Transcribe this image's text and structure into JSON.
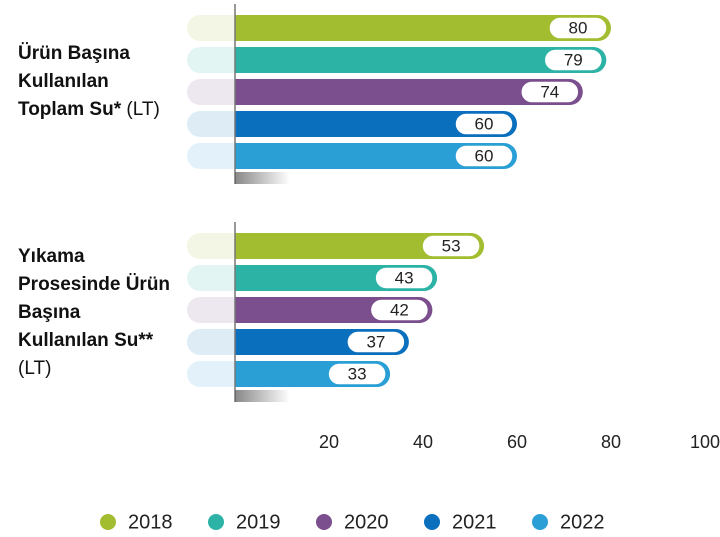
{
  "chart_data": {
    "type": "bar",
    "orientation": "horizontal",
    "categories": [
      "Ürün Başına Kullanılan Toplam Su*",
      "Yıkama Prosesinde Ürün Başına Kullanılan Su**"
    ],
    "unit": "(LT)",
    "series": [
      {
        "name": "2018",
        "color": "#a3bd31",
        "values": [
          80,
          53
        ]
      },
      {
        "name": "2019",
        "color": "#2db3a6",
        "values": [
          79,
          43
        ]
      },
      {
        "name": "2020",
        "color": "#7b4f8e",
        "values": [
          74,
          42
        ]
      },
      {
        "name": "2021",
        "color": "#0a6fbd",
        "values": [
          60,
          37
        ]
      },
      {
        "name": "2022",
        "color": "#2a9fd6",
        "values": [
          60,
          33
        ]
      }
    ],
    "xlim": [
      0,
      100
    ],
    "xticks": [
      20,
      40,
      60,
      80,
      100
    ],
    "grid": false,
    "legend": "bottom"
  }
}
